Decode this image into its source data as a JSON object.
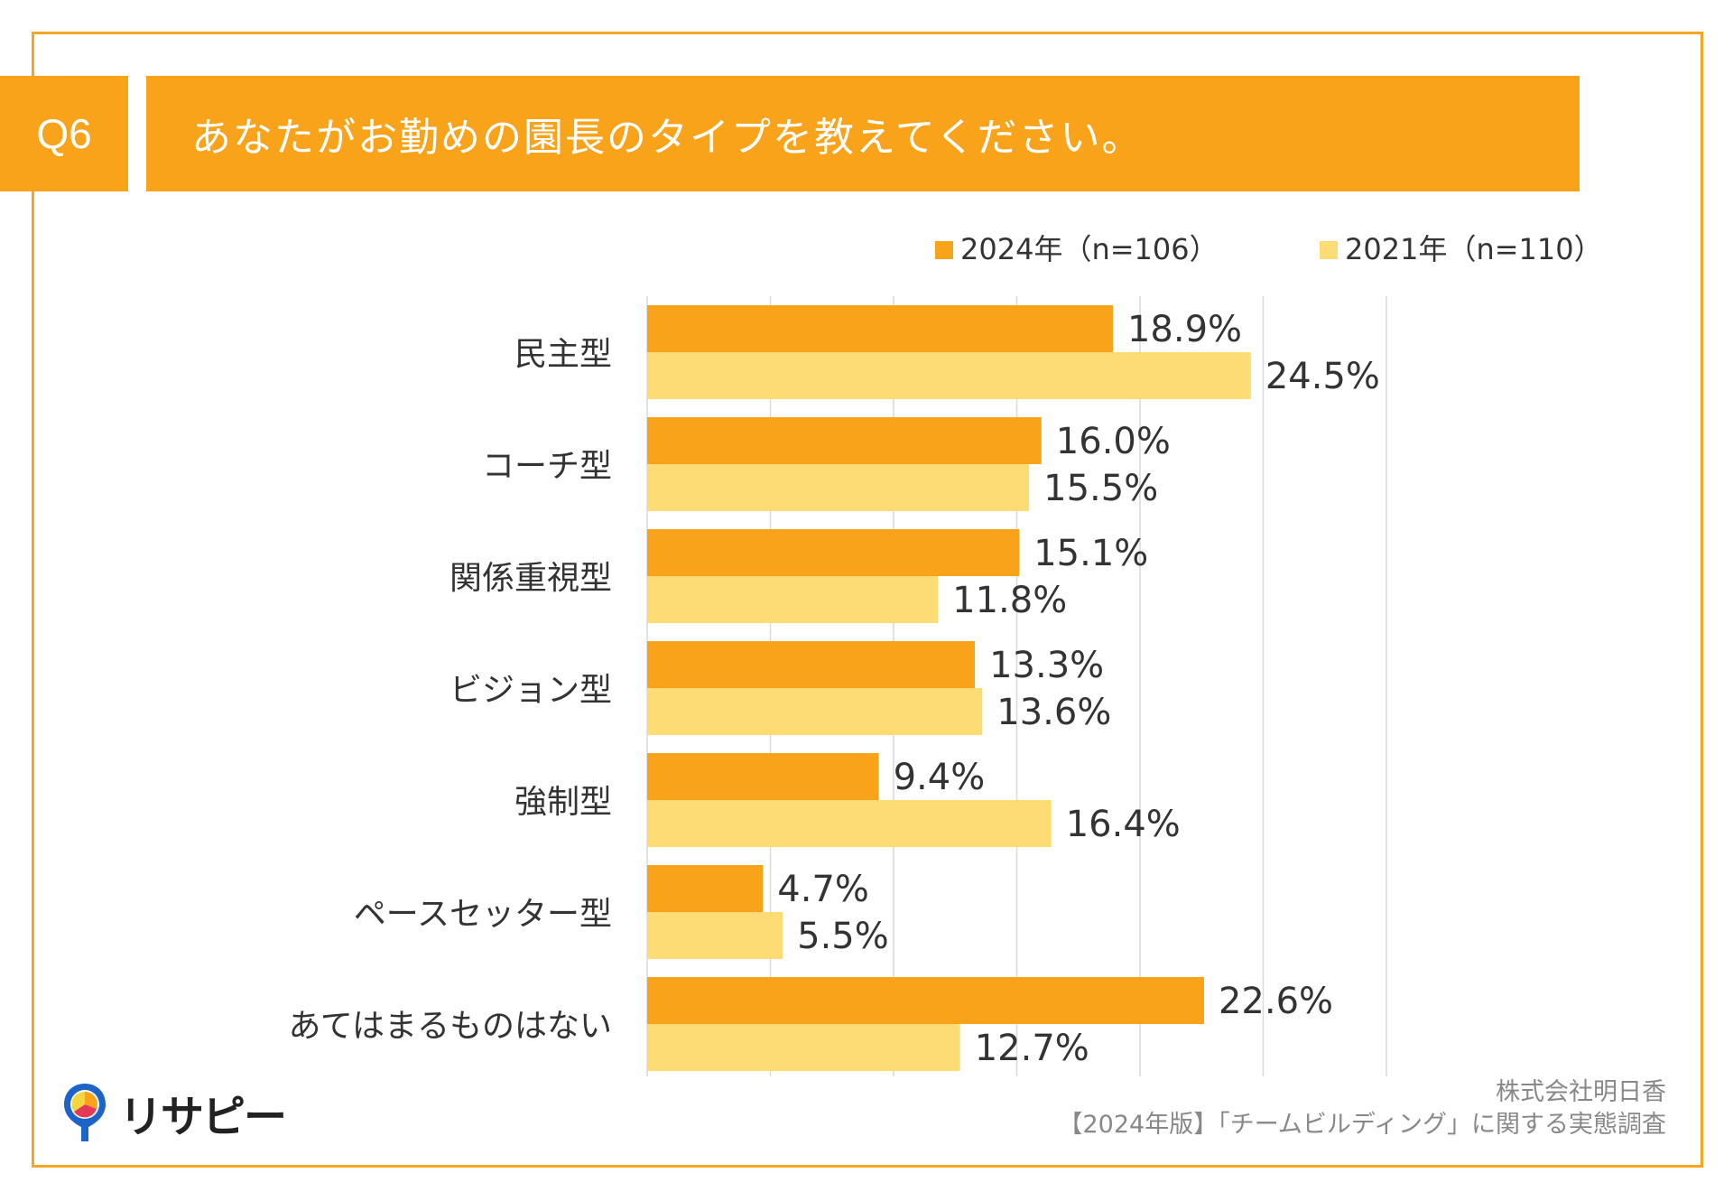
{
  "header": {
    "question_no": "Q6",
    "question": "あなたがお勤めの園長のタイプを教えてください。"
  },
  "chart_data": {
    "type": "bar",
    "orientation": "horizontal",
    "categories": [
      "民主型",
      "コーチ型",
      "関係重視型",
      "ビジョン型",
      "強制型",
      "ペースセッター型",
      "あてはまるものはない"
    ],
    "series": [
      {
        "name": "2024年（n=106）",
        "color": "#f8a31a",
        "values": [
          18.9,
          16.0,
          15.1,
          13.3,
          9.4,
          4.7,
          22.6
        ],
        "labels": [
          "18.9%",
          "16.0%",
          "15.1%",
          "13.3%",
          "9.4%",
          "4.7%",
          "22.6%"
        ]
      },
      {
        "name": "2021年（n=110）",
        "color": "#fddc75",
        "values": [
          24.5,
          15.5,
          11.8,
          13.6,
          16.4,
          5.5,
          12.7
        ],
        "labels": [
          "24.5%",
          "15.5%",
          "11.8%",
          "13.6%",
          "16.4%",
          "5.5%",
          "12.7%"
        ]
      }
    ],
    "xlim": [
      0,
      30
    ],
    "grid": true,
    "legend": "top-right"
  },
  "footer": {
    "logo_text": "リサピー",
    "company": "株式会社明日香",
    "survey": "【2024年版】「チームビルディング」に関する実態調査"
  }
}
